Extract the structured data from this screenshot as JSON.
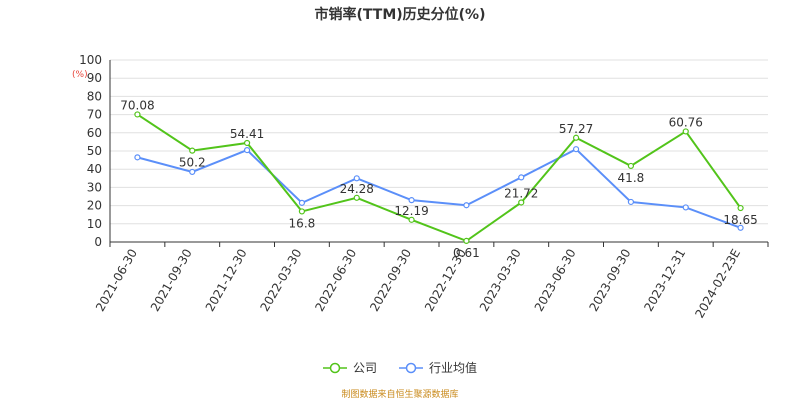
{
  "title": "市销率(TTM)历史分位(%)",
  "unit_label": "(%)",
  "source_note": "制图数据来自恒生聚源数据库",
  "colors": {
    "company": "#52c41a",
    "industry": "#5b8ff9",
    "unit": "#e8443a",
    "source": "#c98a1b",
    "grid": "#e0e0e0",
    "axis": "#333333"
  },
  "chart_data": {
    "type": "line",
    "title": "市销率(TTM)历史分位(%)",
    "ylabel": "(%)",
    "xlabel": "",
    "ylim": [
      0,
      100
    ],
    "yticks": [
      0,
      10,
      20,
      30,
      40,
      50,
      60,
      70,
      80,
      90,
      100
    ],
    "grid": true,
    "legend_position": "bottom",
    "categories": [
      "2021-06-30",
      "2021-09-30",
      "2021-12-30",
      "2022-03-30",
      "2022-06-30",
      "2022-09-30",
      "2022-12-30",
      "2023-03-30",
      "2023-06-30",
      "2023-09-30",
      "2023-12-31",
      "2024-02-23E"
    ],
    "series": [
      {
        "name": "公司",
        "values": [
          70.08,
          50.2,
          54.41,
          16.8,
          24.28,
          12.19,
          0.61,
          21.72,
          57.27,
          41.8,
          60.76,
          18.65
        ],
        "labels": [
          "70.08",
          "50.2",
          "54.41",
          "16.8",
          "24.28",
          "12.19",
          "0.61",
          "21.72",
          "57.27",
          "41.8",
          "60.76",
          "18.65"
        ]
      },
      {
        "name": "行业均值",
        "values": [
          46.5,
          38.5,
          50.5,
          21.5,
          35,
          23,
          20.2,
          35.5,
          51,
          22,
          19,
          7.8
        ]
      }
    ]
  }
}
